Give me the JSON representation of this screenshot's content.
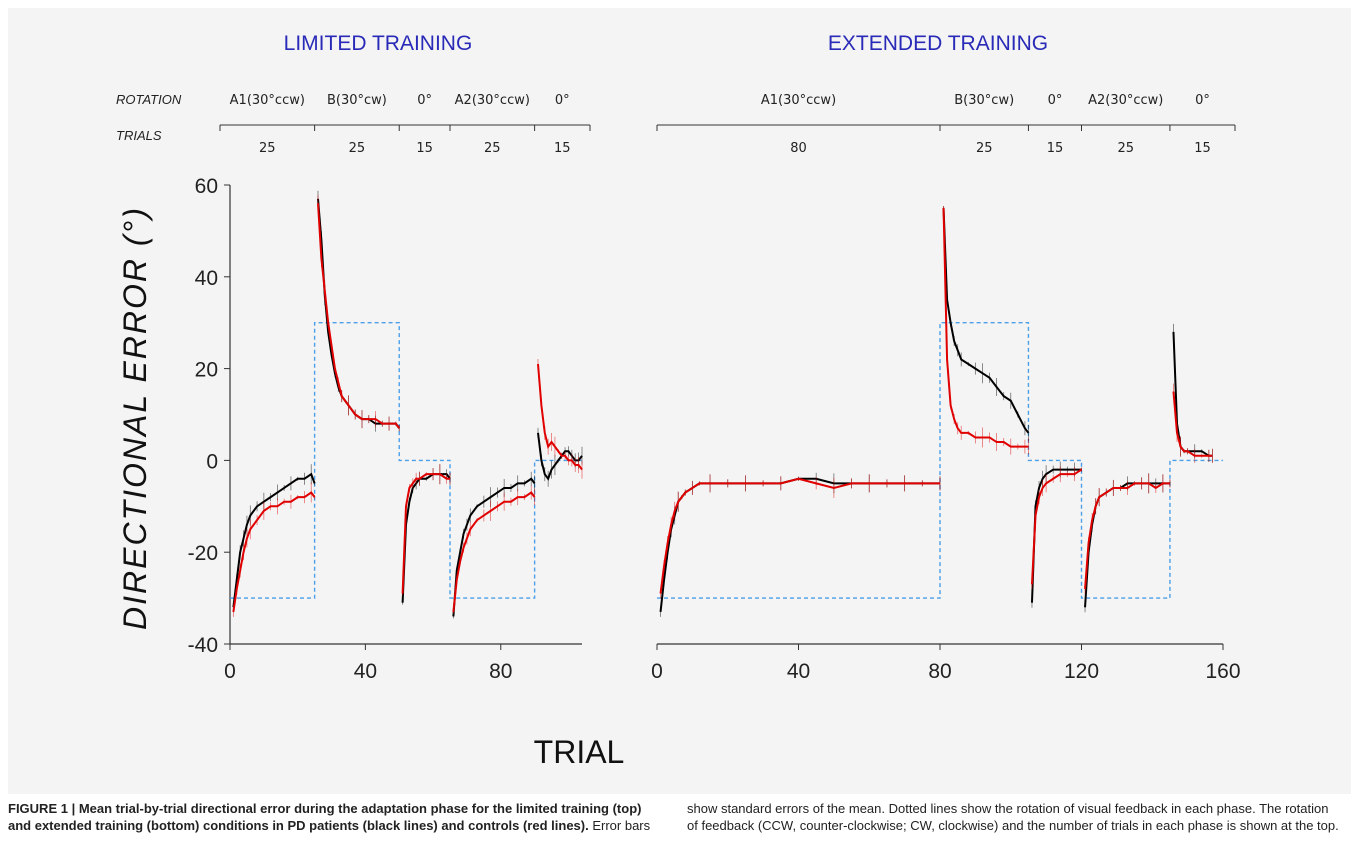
{
  "chart_data": [
    {
      "type": "line",
      "title": "LIMITED TRAINING",
      "xlabel": "TRIAL",
      "ylabel": "DIRECTIONAL ERROR (°)",
      "xlim": [
        0,
        104
      ],
      "ylim": [
        -40,
        60
      ],
      "x_ticks": [
        "0",
        "40",
        "80"
      ],
      "x_tick_values": [
        0,
        40,
        80
      ],
      "y_ticks": [
        "60",
        "40",
        "20",
        "0",
        "-20",
        "-40"
      ],
      "y_tick_values": [
        60,
        40,
        20,
        0,
        -20,
        -40
      ],
      "header_labels": {
        "rotation": "ROTATION",
        "trials": "TRIALS"
      },
      "phases": [
        {
          "rotation": "A1(30°ccw)",
          "trials": "25",
          "start": 0,
          "end": 25,
          "value": -30
        },
        {
          "rotation": "B(30°cw)",
          "trials": "25",
          "start": 25,
          "end": 50,
          "value": 30
        },
        {
          "rotation": "0°",
          "trials": "15",
          "start": 50,
          "end": 65,
          "value": 0
        },
        {
          "rotation": "A2(30°ccw)",
          "trials": "25",
          "start": 65,
          "end": 90,
          "value": -30
        },
        {
          "rotation": "0°",
          "trials": "15",
          "start": 90,
          "end": 105,
          "value": 0
        }
      ],
      "series": [
        {
          "name": "PD patients",
          "color": "#000000",
          "segments": [
            {
              "x": [
                1,
                2,
                3,
                4,
                5,
                6,
                8,
                10,
                12,
                14,
                16,
                18,
                20,
                22,
                24,
                25
              ],
              "y": [
                -32,
                -26,
                -20,
                -17,
                -14,
                -12,
                -10,
                -9,
                -8,
                -7,
                -6,
                -5,
                -4,
                -4,
                -3,
                -5
              ]
            },
            {
              "x": [
                26,
                27,
                28,
                29,
                30,
                31,
                32,
                33,
                35,
                37,
                39,
                41,
                43,
                45,
                47,
                49,
                50
              ],
              "y": [
                57,
                48,
                36,
                28,
                23,
                19,
                16,
                14,
                12,
                10,
                9,
                9,
                8,
                8,
                8,
                8,
                7
              ]
            },
            {
              "x": [
                51,
                52,
                53,
                54,
                55,
                56,
                58,
                60,
                62,
                64,
                65
              ],
              "y": [
                -31,
                -14,
                -9,
                -6,
                -5,
                -4,
                -4,
                -3,
                -3,
                -3,
                -4
              ]
            },
            {
              "x": [
                66,
                67,
                68,
                69,
                70,
                71,
                73,
                75,
                77,
                79,
                81,
                83,
                85,
                87,
                89,
                90
              ],
              "y": [
                -34,
                -24,
                -20,
                -16,
                -14,
                -12,
                -10,
                -9,
                -8,
                -7,
                -6,
                -6,
                -5,
                -5,
                -4,
                -5
              ]
            },
            {
              "x": [
                91,
                92,
                93,
                94,
                95,
                96,
                97,
                98,
                99,
                100,
                101,
                102,
                103,
                104
              ],
              "y": [
                6,
                0,
                -3,
                -4,
                -2,
                -1,
                0,
                1,
                2,
                2,
                1,
                0,
                0,
                1
              ]
            }
          ]
        },
        {
          "name": "controls",
          "color": "#e00000",
          "segments": [
            {
              "x": [
                1,
                2,
                3,
                4,
                5,
                6,
                8,
                10,
                12,
                14,
                16,
                18,
                20,
                22,
                24,
                25
              ],
              "y": [
                -33,
                -28,
                -24,
                -20,
                -17,
                -15,
                -13,
                -11,
                -10,
                -10,
                -9,
                -9,
                -8,
                -8,
                -7,
                -8
              ]
            },
            {
              "x": [
                26,
                27,
                28,
                29,
                30,
                31,
                32,
                33,
                35,
                37,
                39,
                41,
                43,
                45,
                47,
                49,
                50
              ],
              "y": [
                56,
                44,
                37,
                30,
                25,
                20,
                17,
                14,
                12,
                10,
                9,
                9,
                9,
                8,
                8,
                8,
                7
              ]
            },
            {
              "x": [
                51,
                52,
                53,
                54,
                55,
                56,
                58,
                60,
                62,
                64,
                65
              ],
              "y": [
                -29,
                -10,
                -6,
                -5,
                -4,
                -4,
                -3,
                -3,
                -3,
                -4,
                -4
              ]
            },
            {
              "x": [
                66,
                67,
                68,
                69,
                70,
                71,
                73,
                75,
                77,
                79,
                81,
                83,
                85,
                87,
                89,
                90
              ],
              "y": [
                -33,
                -26,
                -22,
                -19,
                -17,
                -15,
                -13,
                -12,
                -11,
                -10,
                -9,
                -9,
                -8,
                -8,
                -7,
                -8
              ]
            },
            {
              "x": [
                91,
                92,
                93,
                94,
                95,
                96,
                97,
                98,
                99,
                100,
                101,
                102,
                103,
                104
              ],
              "y": [
                21,
                12,
                6,
                3,
                4,
                3,
                2,
                1,
                1,
                0,
                0,
                -1,
                -1,
                -2
              ]
            }
          ]
        }
      ]
    },
    {
      "type": "line",
      "title": "EXTENDED TRAINING",
      "xlabel": "TRIAL",
      "xlim": [
        0,
        160
      ],
      "ylim": [
        -40,
        60
      ],
      "x_ticks": [
        "0",
        "40",
        "80",
        "120",
        "160"
      ],
      "x_tick_values": [
        0,
        40,
        80,
        120,
        160
      ],
      "header_labels": {},
      "phases": [
        {
          "rotation": "A1(30°ccw)",
          "trials": "80",
          "start": 0,
          "end": 80,
          "value": -30
        },
        {
          "rotation": "B(30°cw)",
          "trials": "25",
          "start": 80,
          "end": 105,
          "value": 30
        },
        {
          "rotation": "0°",
          "trials": "15",
          "start": 105,
          "end": 120,
          "value": 0
        },
        {
          "rotation": "A2(30°ccw)",
          "trials": "25",
          "start": 120,
          "end": 145,
          "value": -30
        },
        {
          "rotation": "0°",
          "trials": "15",
          "start": 145,
          "end": 160,
          "value": 0
        }
      ],
      "series": [
        {
          "name": "PD patients",
          "color": "#000000",
          "segments": [
            {
              "x": [
                1,
                2,
                3,
                4,
                5,
                6,
                7,
                8,
                10,
                12,
                15,
                20,
                25,
                30,
                35,
                40,
                45,
                50,
                55,
                60,
                65,
                70,
                75,
                80
              ],
              "y": [
                -33,
                -26,
                -20,
                -15,
                -12,
                -9,
                -8,
                -7,
                -6,
                -5,
                -5,
                -5,
                -5,
                -5,
                -5,
                -4,
                -4,
                -5,
                -5,
                -5,
                -5,
                -5,
                -5,
                -5
              ]
            },
            {
              "x": [
                81,
                82,
                83,
                84,
                85,
                86,
                88,
                90,
                92,
                94,
                96,
                98,
                100,
                102,
                104,
                105
              ],
              "y": [
                55,
                35,
                30,
                26,
                24,
                22,
                21,
                20,
                19,
                18,
                16,
                14,
                13,
                10,
                7,
                6
              ]
            },
            {
              "x": [
                106,
                107,
                108,
                109,
                110,
                112,
                114,
                116,
                118,
                120
              ],
              "y": [
                -31,
                -10,
                -6,
                -4,
                -3,
                -2,
                -2,
                -2,
                -2,
                -2
              ]
            },
            {
              "x": [
                121,
                122,
                123,
                124,
                125,
                127,
                129,
                131,
                133,
                135,
                137,
                139,
                141,
                143,
                145
              ],
              "y": [
                -32,
                -20,
                -14,
                -10,
                -8,
                -7,
                -6,
                -6,
                -5,
                -5,
                -5,
                -5,
                -5,
                -5,
                -5
              ]
            },
            {
              "x": [
                146,
                147,
                148,
                149,
                150,
                152,
                154,
                156,
                157
              ],
              "y": [
                28,
                8,
                3,
                2,
                2,
                2,
                2,
                1,
                1
              ]
            }
          ]
        },
        {
          "name": "controls",
          "color": "#e00000",
          "segments": [
            {
              "x": [
                1,
                2,
                3,
                4,
                5,
                6,
                7,
                8,
                10,
                12,
                15,
                20,
                25,
                30,
                35,
                40,
                45,
                50,
                55,
                60,
                65,
                70,
                75,
                80
              ],
              "y": [
                -29,
                -23,
                -18,
                -14,
                -11,
                -9,
                -8,
                -7,
                -6,
                -5,
                -5,
                -5,
                -5,
                -5,
                -5,
                -4,
                -5,
                -6,
                -5,
                -5,
                -5,
                -5,
                -5,
                -5
              ]
            },
            {
              "x": [
                81,
                82,
                83,
                84,
                85,
                86,
                88,
                90,
                92,
                94,
                96,
                98,
                100,
                102,
                104,
                105
              ],
              "y": [
                55,
                22,
                12,
                9,
                7,
                6,
                6,
                5,
                5,
                5,
                4,
                4,
                3,
                3,
                3,
                3
              ]
            },
            {
              "x": [
                106,
                107,
                108,
                109,
                110,
                112,
                114,
                116,
                118,
                120
              ],
              "y": [
                -27,
                -12,
                -8,
                -6,
                -5,
                -4,
                -3,
                -3,
                -3,
                -2
              ]
            },
            {
              "x": [
                121,
                122,
                123,
                124,
                125,
                127,
                129,
                131,
                133,
                135,
                137,
                139,
                141,
                143,
                145
              ],
              "y": [
                -28,
                -18,
                -13,
                -10,
                -8,
                -7,
                -6,
                -6,
                -6,
                -5,
                -5,
                -5,
                -6,
                -5,
                -5
              ]
            },
            {
              "x": [
                146,
                147,
                148,
                149,
                150,
                152,
                154,
                156,
                157
              ],
              "y": [
                15,
                6,
                3,
                2,
                2,
                1,
                1,
                1,
                1
              ]
            }
          ]
        }
      ]
    }
  ],
  "caption": {
    "bold": "FIGURE 1 | Mean trial-by-trial directional error during the adaptation phase for the limited training (top) and extended training (bottom) conditions in PD patients (black lines) and controls (red lines).",
    "text1": "Error bars",
    "text2": "show standard errors of the mean. Dotted lines show the rotation of visual feedback in each phase. The rotation of feedback (CCW, counter-clockwise; CW, clockwise) and the number of trials in each phase is shown at the top."
  },
  "colors": {
    "pd": "#000000",
    "control": "#e00000",
    "rotation": "#4a9fe8",
    "title": "#2a2ab8"
  }
}
